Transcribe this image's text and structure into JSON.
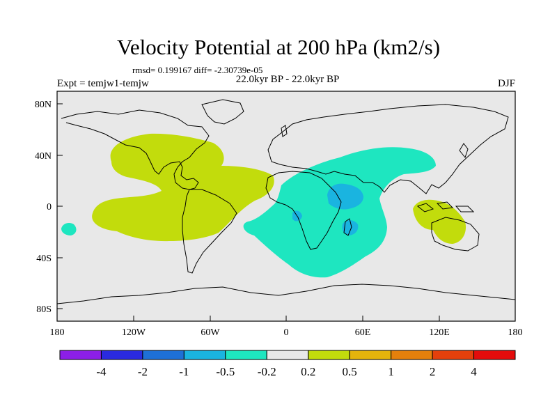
{
  "title": "Velocity Potential at 200 hPa (km2/s)",
  "stats_text": "rmsd= 0.199167 diff= -2.30739e-05",
  "period_text": "22.0kyr BP - 22.0kyr BP",
  "experiment_text": "Expt = temjw1-temjw",
  "season_text": "DJF",
  "lat_labels": [
    "80N",
    "40N",
    "0",
    "40S",
    "80S"
  ],
  "lon_labels": [
    "180",
    "120W",
    "60W",
    "0",
    "60E",
    "120E",
    "180"
  ],
  "colorbar": {
    "colors": [
      "#8c1fe6",
      "#2a2ae0",
      "#1e70d6",
      "#1ab4e0",
      "#1ee6c0",
      "#e8e8e8",
      "#c2dc0c",
      "#e4b40c",
      "#e4800c",
      "#e4400c",
      "#e40c0c"
    ],
    "labels": [
      "-4",
      "-2",
      "-1",
      "-0.5",
      "-0.2",
      "0.2",
      "0.5",
      "1",
      "2",
      "4"
    ]
  },
  "colors": {
    "map_background": "#e8e8e8",
    "positive_anomaly": "#c2dc0c",
    "negative_anomaly": "#1ee6c0",
    "strong_negative": "#1ab4e0",
    "coastline": "#000000"
  }
}
